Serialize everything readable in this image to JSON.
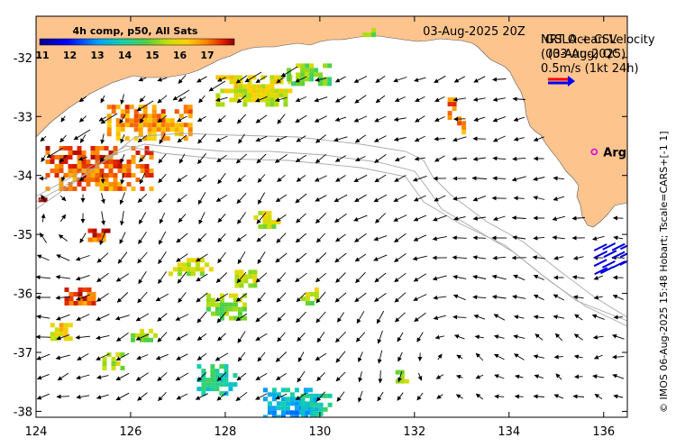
{
  "map": {
    "title_date": "03-Aug-2025 20Z",
    "colorbar_title": "4h comp, p50, All Sats",
    "colorbar_ticks": [
      "11",
      "12",
      "13",
      "14",
      "15",
      "16",
      "17"
    ],
    "velocity_title_a": "NRT Ocean Velocity",
    "velocity_title_b": "GSLA + CSL",
    "velocity_date_a": "(03-Aug-2025)",
    "velocity_date_b": "(03-Aug) QC",
    "velocity_scale": "0.5m/s (1kt 24h)",
    "station_label": "Argo",
    "credit": "© IMOS 06-Aug-2025 15:48 Hobart; Tscale=CARS+[-1 1]",
    "x_axis_labels": [
      "124",
      "126",
      "128",
      "130",
      "132",
      "134",
      "136"
    ],
    "y_axis_labels": [
      "-32",
      "-33",
      "-34",
      "-35",
      "-36",
      "-37",
      "-38"
    ],
    "colors": {
      "land": "#fdc48e",
      "water": "#ffffff",
      "vector": "#000000",
      "bathymetry": "#a8a8a8",
      "hf_radar": "#0000dd",
      "argo_marker": "#e000e0",
      "legend_red": "#ff0000",
      "legend_blue": "#0000ff"
    }
  },
  "chart_data": {
    "type": "map",
    "lon_range": [
      124,
      136.5
    ],
    "lat_range": [
      -38.1,
      -31.3
    ],
    "sst_scale": [
      11,
      17.5
    ],
    "argo_float": {
      "lon": 135.8,
      "lat": -33.6
    },
    "eddy_centre": {
      "lon": 124.9,
      "lat": -35.2
    },
    "sst_patches": [
      {
        "lon": 124.2,
        "lat": -33.5,
        "w": 2.2,
        "h": 0.75,
        "sst": 16.7
      },
      {
        "lon": 125.5,
        "lat": -32.8,
        "w": 1.8,
        "h": 0.55,
        "sst": 16.4
      },
      {
        "lon": 127.8,
        "lat": -32.3,
        "w": 1.6,
        "h": 0.5,
        "sst": 15.5
      },
      {
        "lon": 129.3,
        "lat": -32.1,
        "w": 0.9,
        "h": 0.35,
        "sst": 14.8
      },
      {
        "lon": 124.6,
        "lat": -35.9,
        "w": 0.6,
        "h": 0.3,
        "sst": 16.8
      },
      {
        "lon": 125.0,
        "lat": -34.9,
        "w": 0.5,
        "h": 0.2,
        "sst": 16.8
      },
      {
        "lon": 126.8,
        "lat": -35.4,
        "w": 0.9,
        "h": 0.3,
        "sst": 15.4
      },
      {
        "lon": 127.6,
        "lat": -36.0,
        "w": 0.8,
        "h": 0.4,
        "sst": 14.9
      },
      {
        "lon": 128.2,
        "lat": -35.6,
        "w": 0.5,
        "h": 0.25,
        "sst": 15.2
      },
      {
        "lon": 126.0,
        "lat": -36.6,
        "w": 0.5,
        "h": 0.25,
        "sst": 14.9
      },
      {
        "lon": 127.4,
        "lat": -37.2,
        "w": 0.8,
        "h": 0.5,
        "sst": 13.9
      },
      {
        "lon": 128.8,
        "lat": -37.6,
        "w": 1.1,
        "h": 0.55,
        "sst": 13.2
      },
      {
        "lon": 129.5,
        "lat": -37.7,
        "w": 0.7,
        "h": 0.4,
        "sst": 13.8
      },
      {
        "lon": 124.3,
        "lat": -36.5,
        "w": 0.4,
        "h": 0.25,
        "sst": 15.8
      },
      {
        "lon": 132.7,
        "lat": -32.6,
        "w": 0.15,
        "h": 0.4,
        "sst": 16.5
      },
      {
        "lon": 132.9,
        "lat": -33.0,
        "w": 0.15,
        "h": 0.3,
        "sst": 16.4
      },
      {
        "lon": 130.9,
        "lat": -31.5,
        "w": 0.3,
        "h": 0.12,
        "sst": 14.9
      },
      {
        "lon": 128.6,
        "lat": -34.6,
        "w": 0.5,
        "h": 0.25,
        "sst": 15.3
      },
      {
        "lon": 129.6,
        "lat": -35.9,
        "w": 0.35,
        "h": 0.25,
        "sst": 15.1
      },
      {
        "lon": 131.6,
        "lat": -37.3,
        "w": 0.2,
        "h": 0.2,
        "sst": 15.0
      },
      {
        "lon": 124.05,
        "lat": -34.3,
        "w": 0.15,
        "h": 0.15,
        "sst": 17.3
      },
      {
        "lon": 125.4,
        "lat": -37.0,
        "w": 0.4,
        "h": 0.3,
        "sst": 15.0
      }
    ]
  }
}
